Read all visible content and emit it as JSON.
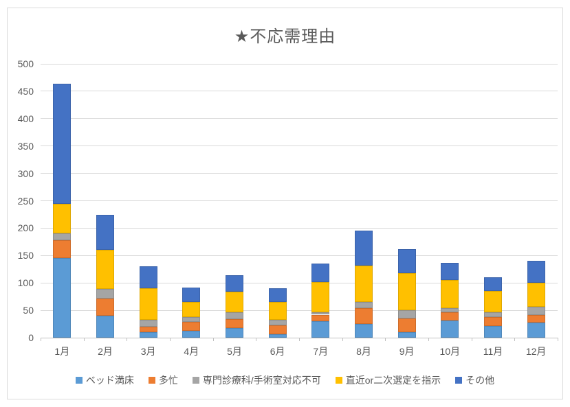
{
  "chart_data": {
    "type": "bar",
    "stacked": true,
    "title": "★不応需理由",
    "categories": [
      "1月",
      "2月",
      "3月",
      "4月",
      "5月",
      "6月",
      "7月",
      "8月",
      "9月",
      "10月",
      "11月",
      "12月"
    ],
    "series": [
      {
        "name": "ベッド満床",
        "color": "#5B9BD5",
        "values": [
          146,
          40,
          10,
          13,
          18,
          6,
          30,
          25,
          10,
          31,
          21,
          27
        ]
      },
      {
        "name": "多忙",
        "color": "#ED7D31",
        "values": [
          32,
          32,
          10,
          16,
          16,
          16,
          12,
          29,
          25,
          16,
          17,
          14
        ]
      },
      {
        "name": "専門診療科/手術室対応不可",
        "color": "#A5A5A5",
        "values": [
          12,
          17,
          13,
          9,
          13,
          11,
          4,
          11,
          15,
          7,
          8,
          15
        ]
      },
      {
        "name": "直近or二次選定を指示",
        "color": "#FFC000",
        "values": [
          54,
          71,
          57,
          27,
          37,
          32,
          55,
          66,
          68,
          51,
          39,
          44
        ]
      },
      {
        "name": "その他",
        "color": "#4472C4",
        "values": [
          220,
          64,
          40,
          27,
          30,
          25,
          34,
          65,
          44,
          32,
          25,
          40
        ]
      }
    ],
    "totals": [
      464,
      224,
      130,
      92,
      114,
      90,
      135,
      196,
      162,
      137,
      110,
      140
    ],
    "ylim": [
      0,
      500
    ],
    "ytick_step": 50,
    "grid": true,
    "legend_position": "bottom",
    "grid_color": "#D9D9D9",
    "axis_color": "#BFBFBF",
    "text_color": "#595959",
    "background_color": "#FFFFFF"
  }
}
